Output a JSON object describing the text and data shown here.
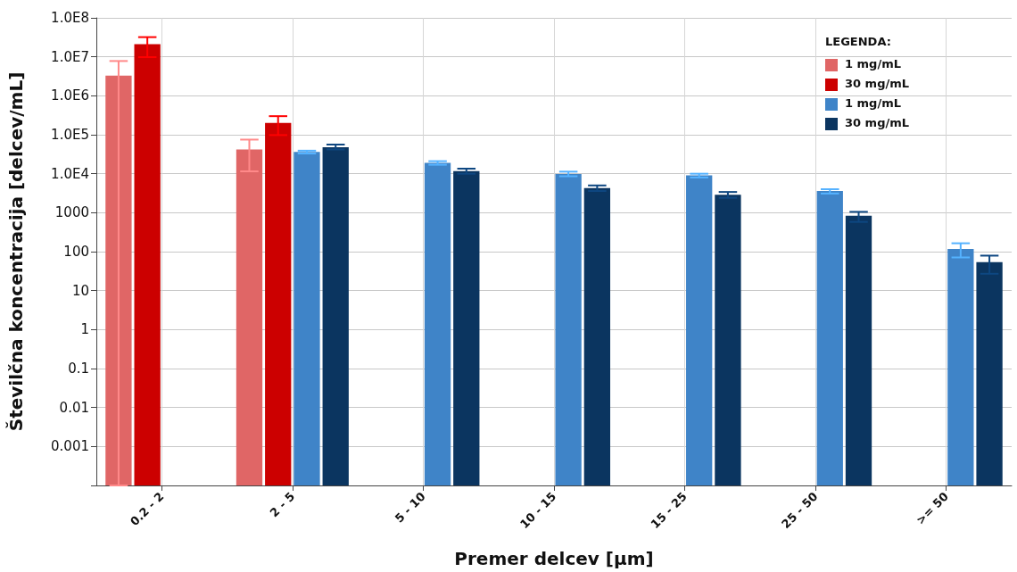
{
  "chart_data": {
    "type": "bar",
    "xlabel": "Premer delcev [µm]",
    "ylabel": "Številčna koncentracija [delcev/mL]",
    "legend_title": "LEGENDA:",
    "categories": [
      "0.2 - 2",
      "2 - 5",
      "5 - 10",
      "10 - 15",
      "15 - 25",
      "25 - 50",
      ">= 50"
    ],
    "series": [
      {
        "name": "1 mg/mL",
        "color": "#e06666",
        "values": [
          3300000,
          42000,
          null,
          null,
          null,
          null,
          null
        ],
        "errors": [
          [
            0.0001,
            7800000
          ],
          [
            11500,
            75000
          ],
          null,
          null,
          null,
          null,
          null
        ]
      },
      {
        "name": "30 mg/mL",
        "color": "#cc0000",
        "values": [
          21000000,
          200000,
          null,
          null,
          null,
          null,
          null
        ],
        "errors": [
          [
            9800000,
            32000000
          ],
          [
            98000,
            300000
          ],
          null,
          null,
          null,
          null,
          null
        ]
      },
      {
        "name": "1 mg/mL",
        "color": "#3f84c8",
        "values": [
          null,
          36000,
          19000,
          9800,
          9100,
          3600,
          117
        ],
        "errors": [
          null,
          [
            33000,
            39000
          ],
          [
            17000,
            21000
          ],
          [
            8600,
            11300
          ],
          [
            8000,
            10000
          ],
          [
            3100,
            4000
          ],
          [
            71,
            164
          ]
        ]
      },
      {
        "name": "30 mg/mL",
        "color": "#0b3560",
        "values": [
          null,
          48000,
          11600,
          4300,
          2900,
          830,
          54
        ],
        "errors": [
          null,
          [
            42000,
            56000
          ],
          [
            10000,
            13500
          ],
          [
            3600,
            5000
          ],
          [
            2400,
            3400
          ],
          [
            580,
            1050
          ],
          [
            27,
            79
          ]
        ]
      }
    ],
    "log": "y",
    "ylim": [
      0.0001,
      100000000
    ],
    "yticks": [
      {
        "value": 0.0001,
        "label": null
      },
      0.001,
      0.01,
      0.1,
      1,
      10,
      100,
      1000,
      {
        "value": 10000,
        "label": "1.0E4"
      },
      {
        "value": 100000,
        "label": "1.0E5"
      },
      {
        "value": 1000000,
        "label": "1.0E6"
      },
      {
        "value": 10000000,
        "label": "1.0E7"
      },
      {
        "value": 100000000,
        "label": "1.0E8"
      }
    ],
    "grid": true,
    "legend": "top right"
  }
}
